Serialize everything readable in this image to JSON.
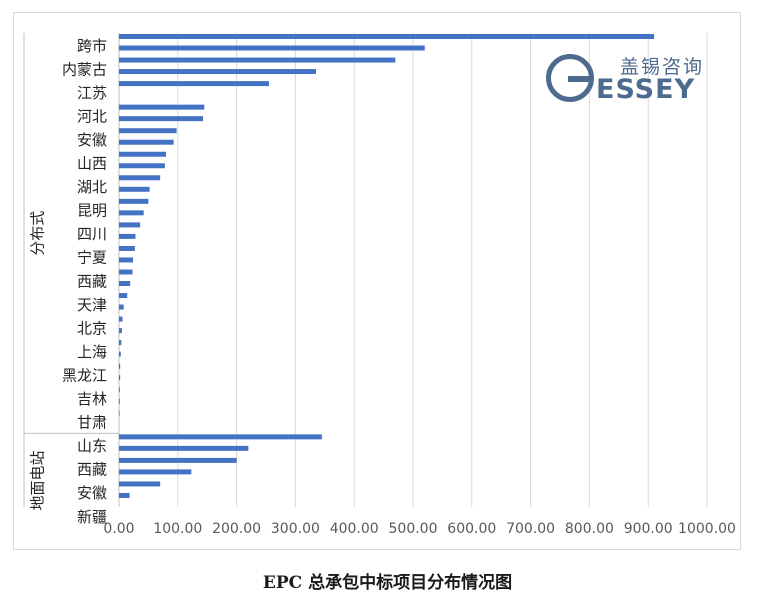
{
  "caption": "EPC 总承包中标项目分布情况图",
  "logo": {
    "cn_text": "盖锡咨询",
    "en_text": "ESSEY",
    "color": "#4d6a8f"
  },
  "chart_data": {
    "type": "bar",
    "orientation": "horizontal",
    "bar_color": "#4472c4",
    "xlim": [
      0,
      1000
    ],
    "x_ticks": [
      "0.00",
      "100.00",
      "200.00",
      "300.00",
      "400.00",
      "500.00",
      "600.00",
      "700.00",
      "800.00",
      "900.00",
      "1000.00"
    ],
    "grid": true,
    "groups": [
      {
        "name": "分布式",
        "rows": [
          {
            "label": "跨市",
            "values": [
              910,
              520
            ]
          },
          {
            "label": "内蒙古",
            "values": [
              470,
              335
            ]
          },
          {
            "label": "江苏",
            "values": [
              255,
              null
            ]
          },
          {
            "label": "河北",
            "values": [
              145,
              143
            ]
          },
          {
            "label": "安徽",
            "values": [
              98,
              93
            ]
          },
          {
            "label": "山西",
            "values": [
              80,
              78
            ]
          },
          {
            "label": "湖北",
            "values": [
              70,
              52
            ]
          },
          {
            "label": "昆明",
            "values": [
              50,
              42
            ]
          },
          {
            "label": "四川",
            "values": [
              36,
              28
            ]
          },
          {
            "label": "宁夏",
            "values": [
              27,
              24
            ]
          },
          {
            "label": "西藏",
            "values": [
              23,
              19
            ]
          },
          {
            "label": "天津",
            "values": [
              14,
              8
            ]
          },
          {
            "label": "北京",
            "values": [
              6,
              5
            ]
          },
          {
            "label": "上海",
            "values": [
              4,
              3
            ]
          },
          {
            "label": "黑龙江",
            "values": [
              2,
              2
            ]
          },
          {
            "label": "吉林",
            "values": [
              1.5,
              1.5
            ]
          },
          {
            "label": "甘肃",
            "values": [
              1,
              null
            ]
          }
        ]
      },
      {
        "name": "地面电站",
        "rows": [
          {
            "label": "山东",
            "values": [
              345,
              220
            ]
          },
          {
            "label": "西藏",
            "values": [
              200,
              123
            ]
          },
          {
            "label": "安徽",
            "values": [
              70,
              18
            ]
          },
          {
            "label": "新疆",
            "values": [
              null,
              null
            ]
          }
        ]
      }
    ]
  }
}
